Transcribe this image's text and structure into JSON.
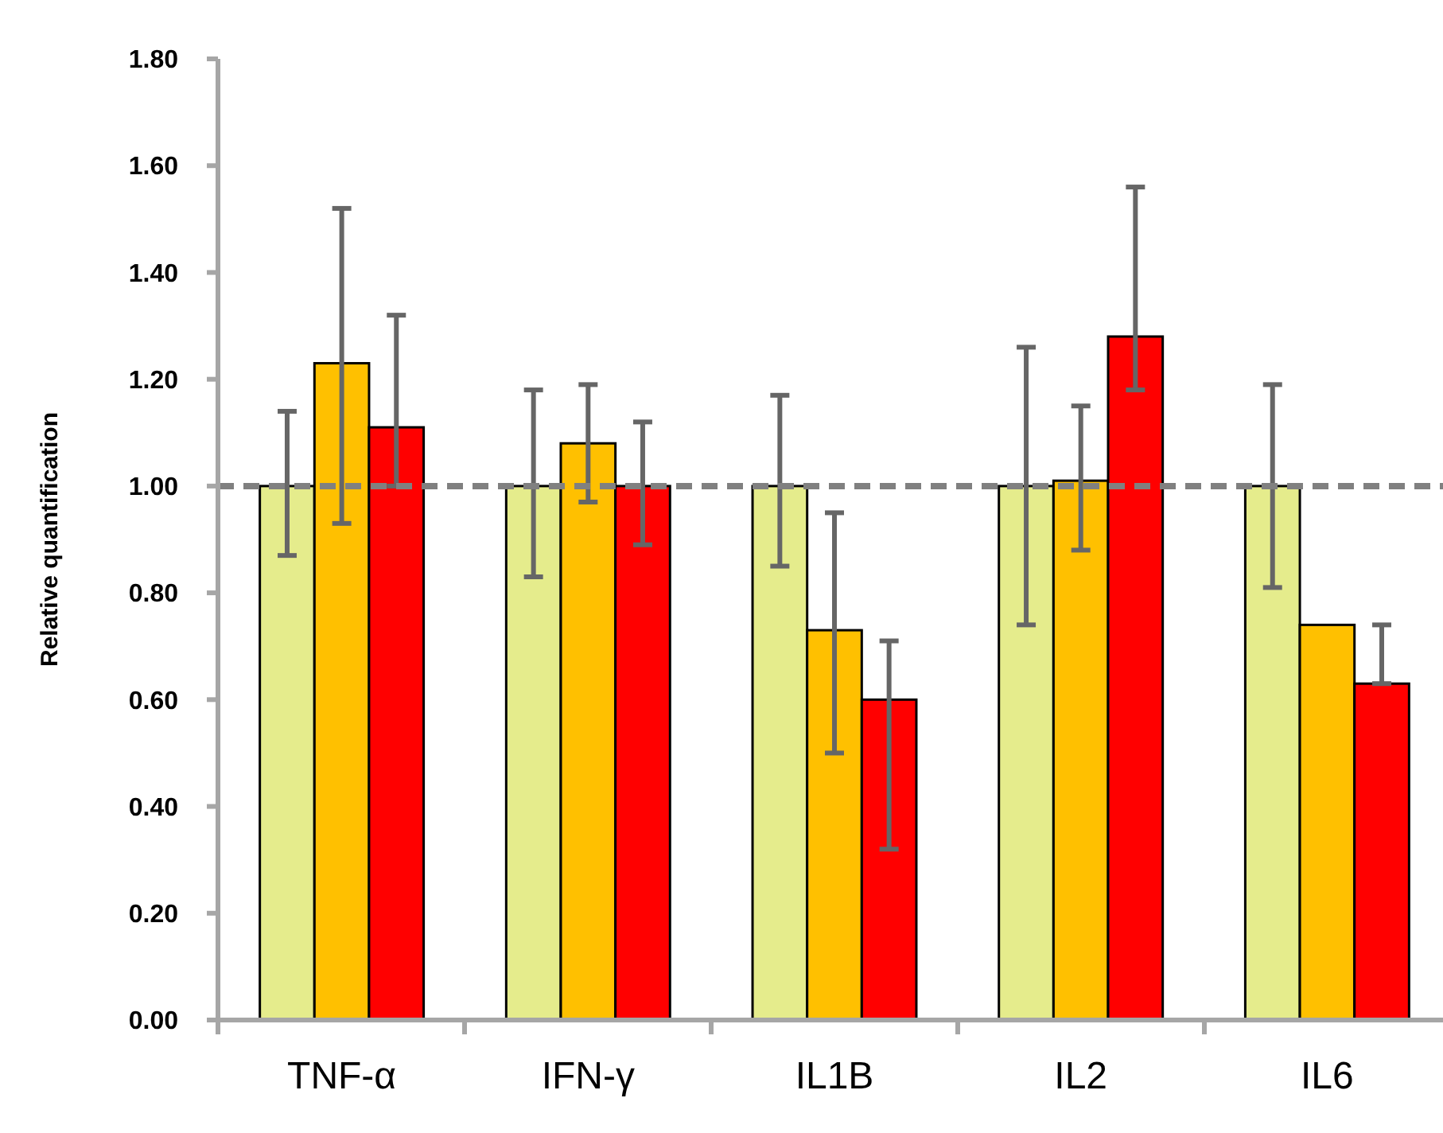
{
  "chart_data": {
    "type": "bar",
    "ylabel": "Relative quantification",
    "categories": [
      "TNF-α",
      "IFN-γ",
      "IL1B",
      "IL2",
      "IL6"
    ],
    "series": [
      {
        "color": "#e5ec8c",
        "values": [
          1.0,
          1.0,
          1.0,
          1.0,
          1.0
        ],
        "errors": [
          [
            0.87,
            1.14
          ],
          [
            0.83,
            1.18
          ],
          [
            0.85,
            1.17
          ],
          [
            0.74,
            1.26
          ],
          [
            0.81,
            1.19
          ]
        ]
      },
      {
        "color": "#ffc000",
        "values": [
          1.23,
          1.08,
          0.73,
          1.01,
          0.74
        ],
        "errors": [
          [
            0.93,
            1.52
          ],
          [
            0.97,
            1.19
          ],
          [
            0.5,
            0.95
          ],
          [
            0.88,
            1.15
          ],
          null
        ]
      },
      {
        "color": "#ff0000",
        "values": [
          1.11,
          1.0,
          0.6,
          1.28,
          0.63
        ],
        "errors": [
          [
            1.0,
            1.32
          ],
          [
            0.89,
            1.12
          ],
          [
            0.32,
            0.71
          ],
          [
            1.18,
            1.56
          ],
          [
            0.63,
            0.74
          ]
        ]
      }
    ],
    "ylim": [
      0,
      1.8
    ],
    "yticks": [
      {
        "value": 0,
        "label": "0.00"
      },
      {
        "value": 0.2,
        "label": "0.20"
      },
      {
        "value": 0.4,
        "label": "0.40"
      },
      {
        "value": 0.6,
        "label": "0.60"
      },
      {
        "value": 0.8,
        "label": "0.80"
      },
      {
        "value": 1,
        "label": "1.00"
      },
      {
        "value": 1.2,
        "label": "1.20"
      },
      {
        "value": 1.4,
        "label": "1.40"
      },
      {
        "value": 1.6,
        "label": "1.60"
      },
      {
        "value": 1.8,
        "label": "1.80"
      }
    ],
    "ref_lines": [
      {
        "axis": "y",
        "value": 1.0,
        "color": "#808080",
        "line_style": "dashed"
      }
    ],
    "grid": false
  }
}
